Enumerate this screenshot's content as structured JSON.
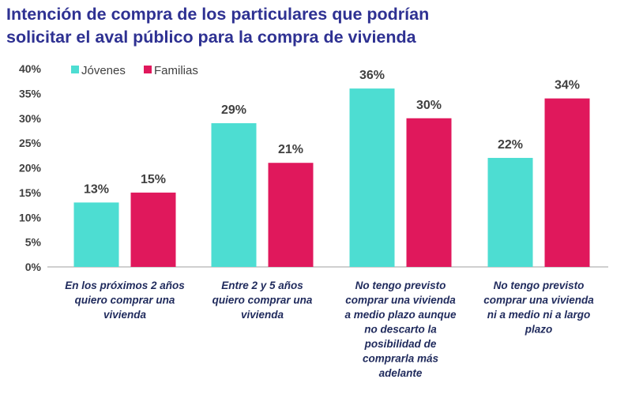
{
  "chart_data": {
    "type": "bar",
    "title": "Intención de compra de los particulares que podrían solicitar el aval público para la compra de vivienda",
    "title_lines": [
      "Intención de compra de los particulares que podrían",
      "solicitar el aval público para la compra de vivienda"
    ],
    "categories": [
      "En los próximos 2 años quiero comprar una vivienda",
      "Entre 2 y 5 años quiero comprar una vivienda",
      "No tengo previsto comprar una vivienda a medio plazo aunque no descarto la posibilidad de comprarla más adelante",
      "No tengo previsto comprar una vivienda ni a medio ni a largo plazo"
    ],
    "category_lines": [
      [
        "En los próximos 2 años",
        "quiero comprar una",
        "vivienda"
      ],
      [
        "Entre 2 y 5 años",
        "quiero comprar una",
        "vivienda"
      ],
      [
        "No tengo previsto",
        "comprar una vivienda",
        "a medio plazo aunque",
        "no descarto la",
        "posibilidad de",
        "comprarla más",
        "adelante"
      ],
      [
        "No tengo previsto",
        "comprar una vivienda",
        "ni a medio ni a largo",
        "plazo"
      ]
    ],
    "series": [
      {
        "name": "Jóvenes",
        "color": "#4DDDD2",
        "values": [
          13,
          29,
          36,
          22
        ]
      },
      {
        "name": "Familias",
        "color": "#E0185C",
        "values": [
          15,
          21,
          30,
          34
        ]
      }
    ],
    "data_labels": [
      [
        "13%",
        "29%",
        "36%",
        "22%"
      ],
      [
        "15%",
        "21%",
        "30%",
        "34%"
      ]
    ],
    "yticks": [
      "0%",
      "5%",
      "10%",
      "15%",
      "20%",
      "25%",
      "30%",
      "35%",
      "40%"
    ],
    "ylim": [
      0,
      40
    ],
    "xlabel": "",
    "ylabel": "",
    "grid": false,
    "legend": "top-left"
  }
}
